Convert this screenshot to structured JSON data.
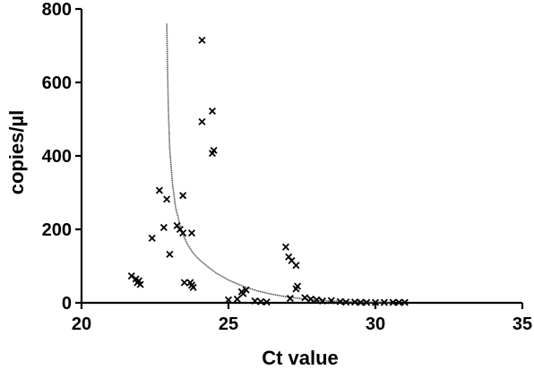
{
  "chart_data": {
    "type": "scatter",
    "title": "",
    "xlabel": "Ct value",
    "ylabel": "copies/µl",
    "xlim": [
      20,
      35
    ],
    "ylim": [
      0,
      800
    ],
    "xticks": [
      "20",
      "25",
      "30",
      "35"
    ],
    "yticks": [
      "0",
      "200",
      "400",
      "600",
      "800"
    ],
    "grid": false,
    "legend": "none",
    "marker": "x",
    "series": [
      {
        "points": [
          [
            21.7,
            73
          ],
          [
            21.85,
            65
          ],
          [
            21.9,
            55
          ],
          [
            22.0,
            50
          ],
          [
            21.95,
            60
          ],
          [
            22.4,
            176
          ],
          [
            22.65,
            306
          ],
          [
            22.8,
            205
          ],
          [
            22.9,
            282
          ],
          [
            23.0,
            132
          ],
          [
            23.25,
            210
          ],
          [
            23.35,
            200
          ],
          [
            23.45,
            292
          ],
          [
            23.45,
            190
          ],
          [
            23.5,
            55
          ],
          [
            23.7,
            55
          ],
          [
            23.75,
            190
          ],
          [
            23.8,
            42
          ],
          [
            23.75,
            48
          ],
          [
            24.1,
            715
          ],
          [
            24.1,
            493
          ],
          [
            24.45,
            522
          ],
          [
            24.5,
            415
          ],
          [
            24.45,
            407
          ],
          [
            25.0,
            8
          ],
          [
            25.3,
            10
          ],
          [
            25.45,
            30
          ],
          [
            25.5,
            25
          ],
          [
            25.6,
            35
          ],
          [
            25.9,
            5
          ],
          [
            26.1,
            3
          ],
          [
            26.3,
            2
          ],
          [
            26.95,
            152
          ],
          [
            27.05,
            125
          ],
          [
            27.15,
            115
          ],
          [
            27.3,
            102
          ],
          [
            27.35,
            45
          ],
          [
            27.3,
            38
          ],
          [
            27.1,
            12
          ],
          [
            27.6,
            14
          ],
          [
            27.8,
            10
          ],
          [
            28.0,
            8
          ],
          [
            28.2,
            5
          ],
          [
            28.5,
            6
          ],
          [
            28.8,
            3
          ],
          [
            29.0,
            2
          ],
          [
            29.3,
            2
          ],
          [
            29.5,
            1
          ],
          [
            29.7,
            1
          ],
          [
            30.0,
            1
          ],
          [
            30.3,
            1
          ],
          [
            30.6,
            1
          ],
          [
            30.8,
            1
          ],
          [
            31.0,
            1
          ]
        ]
      }
    ],
    "fit_curve": {
      "style": "dotted",
      "x_start": 22.9,
      "x_end": 30.5,
      "points": [
        [
          22.9,
          760
        ],
        [
          22.95,
          540
        ],
        [
          23.0,
          420
        ],
        [
          23.1,
          320
        ],
        [
          23.2,
          260
        ],
        [
          23.4,
          195
        ],
        [
          23.6,
          160
        ],
        [
          23.8,
          135
        ],
        [
          24.0,
          118
        ],
        [
          24.3,
          98
        ],
        [
          24.6,
          80
        ],
        [
          25.0,
          62
        ],
        [
          25.5,
          45
        ],
        [
          26.0,
          32
        ],
        [
          26.5,
          23
        ],
        [
          27.0,
          16
        ],
        [
          27.5,
          11
        ],
        [
          28.0,
          7
        ],
        [
          28.5,
          5
        ],
        [
          29.0,
          3
        ],
        [
          29.5,
          2
        ],
        [
          30.0,
          1
        ],
        [
          30.5,
          1
        ]
      ]
    }
  }
}
